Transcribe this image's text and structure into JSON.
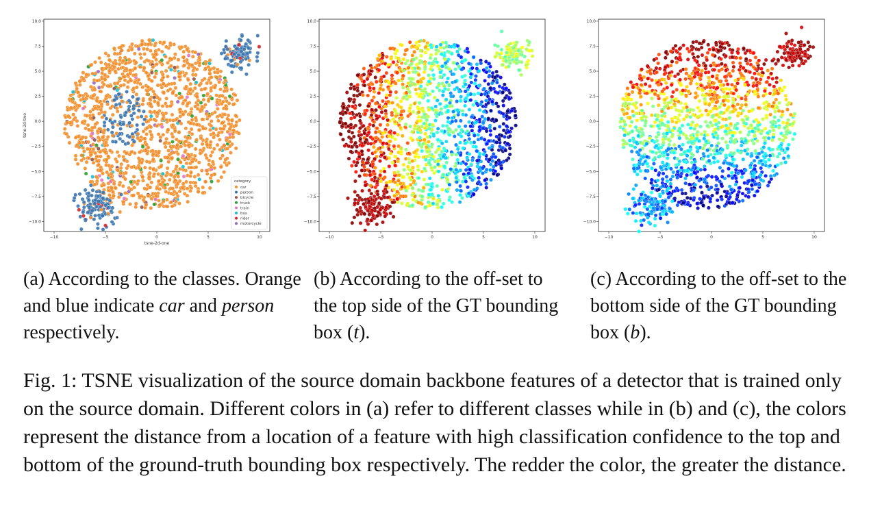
{
  "chart_data": [
    {
      "id": "a",
      "type": "scatter",
      "xlabel": "tsne-2d-one",
      "ylabel": "tsne-2d-two",
      "xlim": [
        -11,
        11
      ],
      "ylim": [
        -11,
        10.2
      ],
      "x_ticks": [
        "−10",
        "−5",
        "0",
        "5",
        "10"
      ],
      "y_ticks": [
        "10.0",
        "7.5",
        "5.0",
        "2.5",
        "0.0",
        "−2.5",
        "−5.0",
        "−7.5",
        "−10.0"
      ],
      "legend_title": "category",
      "legend_position": "lower-right",
      "legend": [
        {
          "name": "car",
          "color": "#f28e2b"
        },
        {
          "name": "person",
          "color": "#3b75af"
        },
        {
          "name": "bicycle",
          "color": "#8c564b"
        },
        {
          "name": "truck",
          "color": "#2ca02c"
        },
        {
          "name": "train",
          "color": "#e377c2"
        },
        {
          "name": "bus",
          "color": "#17becf"
        },
        {
          "name": "rider",
          "color": "#d62728"
        },
        {
          "name": "motorcycle",
          "color": "#9467bd"
        }
      ]
    },
    {
      "id": "b",
      "type": "scatter",
      "xlabel": "",
      "ylabel": "",
      "xlim": [
        -11,
        11
      ],
      "ylim": [
        -11,
        10.2
      ],
      "x_ticks": [
        "−10",
        "−5",
        "0",
        "5",
        "10"
      ],
      "y_ticks": [
        "10.0",
        "7.5",
        "5.0",
        "2.5",
        "0.0",
        "−2.5",
        "−5.0",
        "−7.5",
        "−10.0"
      ],
      "colormap": "rainbow",
      "color_meaning": "offset to top side"
    },
    {
      "id": "c",
      "type": "scatter",
      "xlabel": "",
      "ylabel": "",
      "xlim": [
        -11,
        11
      ],
      "ylim": [
        -11,
        10.2
      ],
      "x_ticks": [
        "−10",
        "−5",
        "0",
        "5",
        "10"
      ],
      "y_ticks": [
        "10.0",
        "7.5",
        "5.0",
        "2.5",
        "0.0",
        "−2.5",
        "−5.0",
        "−7.5",
        "−10.0"
      ],
      "colormap": "rainbow",
      "color_meaning": "offset to bottom side"
    }
  ],
  "subcaptions": {
    "a": {
      "pre": "(a) According to the classes. Orange and blue indicate ",
      "em1": "car",
      "mid": " and ",
      "em2": "person",
      "post": " respectively."
    },
    "b": {
      "pre": "(b) According to the off-set to the top side of the GT bounding box (",
      "em": "t",
      "post": ")."
    },
    "c": {
      "pre": "(c) According to the off-set to the bottom side of the GT bounding box (",
      "em": "b",
      "post": ")."
    }
  },
  "figure_caption": {
    "label": "Fig. 1:",
    "text": "TSNE visualization of the source domain backbone features of a detector that is trained only on the source domain. Different colors in (a) refer to different classes while in (b) and (c), the colors represent the distance from a location of a feature with high classification confidence to the top and bottom of the ground-truth bounding box respectively. The redder the color, the greater the distance."
  }
}
